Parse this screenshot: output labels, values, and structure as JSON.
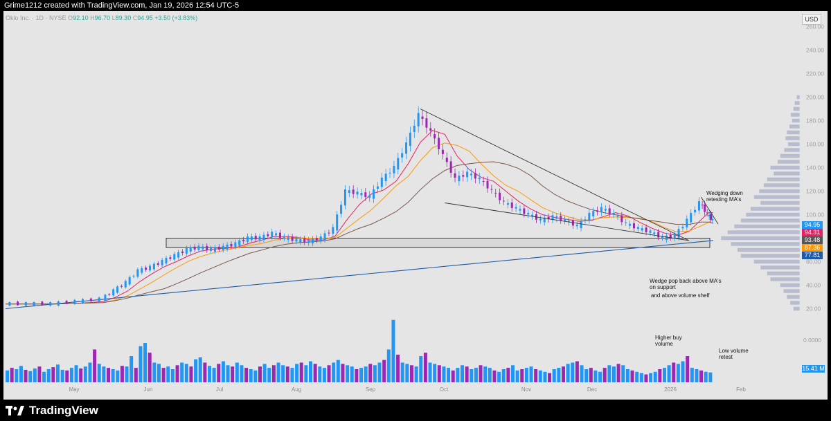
{
  "header": {
    "credit": "Grime1212 created with TradingView.com, Jan 19, 2026 12:54 UTC-5"
  },
  "legend": {
    "symbol": "Oklo Inc. · 1D · NYSE",
    "open_label": "O",
    "open": "92.10",
    "high_label": "H",
    "high": "96.70",
    "low_label": "L",
    "low": "89.30",
    "close_label": "C",
    "close": "94.95",
    "change": "+3.50 (+3.83%)"
  },
  "currency": "USD",
  "price_tags": [
    {
      "label": "94.95",
      "value": 94.95,
      "color": "#2196f3"
    },
    {
      "label": "94.31",
      "value": 94.31,
      "color": "#e91e63"
    },
    {
      "label": "93.48",
      "value": 93.48,
      "color": "#555555"
    },
    {
      "label": "87.36",
      "value": 87.36,
      "color": "#ff9800"
    },
    {
      "label": "77.81",
      "value": 77.81,
      "color": "#1e5aa8"
    }
  ],
  "volume_tag": "15.41 M",
  "volume_axis_label": "0.0000",
  "annotations": {
    "wedging_down": "Wedging down\nretesting MA's",
    "wedge_pop": "Wedge pop back above MA's\non support",
    "volume_shelf": "and above volume shelf",
    "higher_buy": "Higher buy\nvolume",
    "low_volume": "Low volume\nretest"
  },
  "brand": "TradingView",
  "chart_data": {
    "type": "candlestick",
    "title": "",
    "y_ticks": [
      "260.00",
      "240.00",
      "220.00",
      "200.00",
      "180.00",
      "160.00",
      "140.00",
      "120.00",
      "100.00",
      "80.00",
      "60.00",
      "40.00",
      "20.00"
    ],
    "ylim": [
      15,
      265
    ],
    "x_ticks": [
      "May",
      "Jun",
      "Jul",
      "Aug",
      "Sep",
      "Oct",
      "Nov",
      "Dec",
      "2026",
      "Feb"
    ],
    "colors": {
      "up": "#2196f3",
      "down": "#9c27b0",
      "ma_fast": "#e91e63",
      "ma_mid": "#ff9800",
      "ma_slow": "#795548",
      "ma_long": "#1e5aa8",
      "support": "#cfcfcf"
    },
    "support_zone": [
      72,
      80
    ],
    "price_path": [
      [
        0,
        24
      ],
      [
        10,
        24
      ],
      [
        20,
        24
      ],
      [
        30,
        26
      ],
      [
        40,
        28
      ],
      [
        45,
        35
      ],
      [
        50,
        42
      ],
      [
        55,
        52
      ],
      [
        60,
        55
      ],
      [
        65,
        60
      ],
      [
        70,
        65
      ],
      [
        75,
        70
      ],
      [
        80,
        72
      ],
      [
        85,
        70
      ],
      [
        90,
        72
      ],
      [
        95,
        75
      ],
      [
        100,
        80
      ],
      [
        105,
        80
      ],
      [
        110,
        84
      ],
      [
        115,
        80
      ],
      [
        120,
        78
      ],
      [
        125,
        77
      ],
      [
        130,
        80
      ],
      [
        135,
        88
      ],
      [
        140,
        120
      ],
      [
        145,
        118
      ],
      [
        150,
        115
      ],
      [
        155,
        130
      ],
      [
        160,
        140
      ],
      [
        165,
        160
      ],
      [
        170,
        185
      ],
      [
        175,
        170
      ],
      [
        180,
        150
      ],
      [
        185,
        130
      ],
      [
        190,
        135
      ],
      [
        195,
        130
      ],
      [
        200,
        120
      ],
      [
        205,
        110
      ],
      [
        210,
        105
      ],
      [
        215,
        100
      ],
      [
        220,
        95
      ],
      [
        225,
        98
      ],
      [
        230,
        95
      ],
      [
        235,
        90
      ],
      [
        240,
        100
      ],
      [
        245,
        105
      ],
      [
        250,
        100
      ],
      [
        255,
        92
      ],
      [
        260,
        88
      ],
      [
        265,
        85
      ],
      [
        270,
        80
      ],
      [
        275,
        82
      ],
      [
        280,
        95
      ],
      [
        285,
        110
      ],
      [
        288,
        100
      ],
      [
        290,
        94.95
      ]
    ],
    "volume": [
      18,
      22,
      20,
      25,
      19,
      17,
      21,
      24,
      16,
      20,
      23,
      27,
      19,
      18,
      22,
      26,
      21,
      24,
      30,
      50,
      28,
      24,
      22,
      20,
      18,
      25,
      24,
      40,
      22,
      55,
      60,
      45,
      30,
      28,
      22,
      24,
      20,
      26,
      30,
      28,
      24,
      35,
      38,
      30,
      25,
      22,
      28,
      32,
      26,
      24,
      30,
      26,
      22,
      20,
      18,
      24,
      28,
      22,
      26,
      30,
      26,
      24,
      22,
      28,
      30,
      26,
      32,
      28,
      24,
      22,
      26,
      30,
      34,
      28,
      26,
      24,
      20,
      22,
      24,
      28,
      26,
      30,
      34,
      50,
      95,
      42,
      30,
      28,
      26,
      24,
      40,
      45,
      30,
      28,
      26,
      24,
      22,
      18,
      22,
      26,
      24,
      20,
      22,
      26,
      24,
      22,
      18,
      16,
      20,
      22,
      26,
      18,
      20,
      22,
      24,
      20,
      18,
      16,
      14,
      20,
      22,
      24,
      28,
      30,
      32,
      26,
      20,
      22,
      18,
      16,
      22,
      26,
      24,
      28,
      26,
      20,
      18,
      16,
      14,
      12,
      14,
      16,
      20,
      22,
      26,
      30,
      28,
      32,
      40,
      22,
      20,
      18,
      16,
      15
    ],
    "volume_up_color": "#2196f3",
    "volume_down_color": "#9c27b0",
    "price_ticks_values": [
      260,
      240,
      220,
      200,
      180,
      160,
      140,
      120,
      100,
      80,
      60,
      40,
      20
    ]
  }
}
